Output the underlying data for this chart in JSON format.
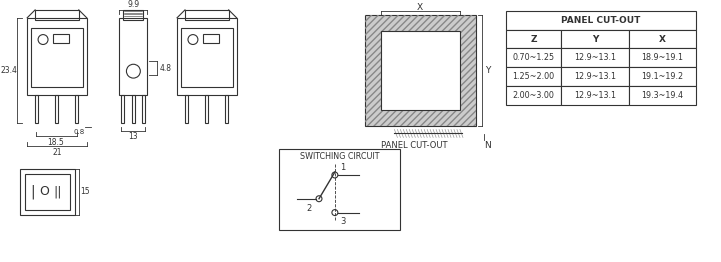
{
  "bg_color": "#ffffff",
  "line_color": "#333333",
  "table_title": "PANEL CUT-OUT",
  "table_headers": [
    "Z",
    "Y",
    "X"
  ],
  "table_rows": [
    [
      "0.70~1.25",
      "12.9~13.1",
      "18.9~19.1"
    ],
    [
      "1.25~2.00",
      "12.9~13.1",
      "19.1~19.2"
    ],
    [
      "2.00~3.00",
      "12.9~13.1",
      "19.3~19.4"
    ]
  ],
  "switching_circuit_label": "SWITCHING CIRCUIT",
  "panel_cutout_label": "PANEL CUT-OUT",
  "dim_23_4": "23.4",
  "dim_18_5": "18.5",
  "dim_21": "21",
  "dim_0_8": "0.8",
  "dim_9_9": "9.9",
  "dim_4_8": "4.8",
  "dim_13": "13",
  "dim_15": "15",
  "dim_x": "X",
  "dim_y": "Y",
  "dim_n": "N",
  "label_1": "1",
  "label_2": "2",
  "label_3": "3"
}
